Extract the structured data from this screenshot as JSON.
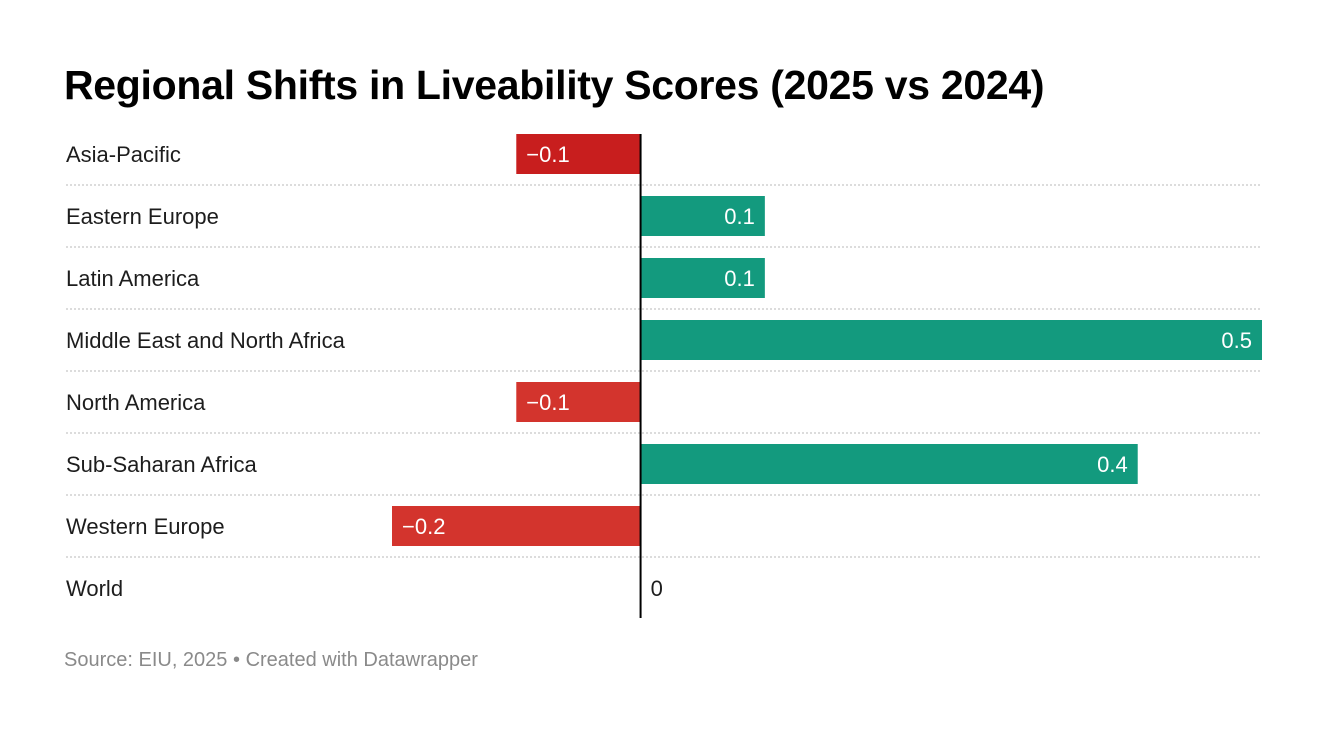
{
  "footer": {
    "source": "Source: EIU, 2025",
    "separator": "•",
    "credit": "Created with Datawrapper"
  },
  "colors": {
    "positive": "#139a7e",
    "negative": "#d3342d",
    "negative_highlight": "#c81e1e",
    "zero_line": "#000000",
    "grid": "#c8c8c8",
    "label_text": "#1d1d1d",
    "value_text_in_bar": "#ffffff"
  },
  "chart_data": {
    "type": "bar",
    "orientation": "horizontal",
    "title": "Regional Shifts in Liveability Scores (2025 vs 2024)",
    "xlabel": "",
    "ylabel": "",
    "xlim": [
      -0.2,
      0.5
    ],
    "grid": false,
    "categories": [
      "Asia-Pacific",
      "Eastern Europe",
      "Latin America",
      "Middle East and North Africa",
      "North America",
      "Sub-Saharan Africa",
      "Western Europe",
      "World"
    ],
    "values": [
      -0.1,
      0.1,
      0.1,
      0.5,
      -0.1,
      0.4,
      -0.2,
      0
    ],
    "value_labels": [
      "−0.1",
      "0.1",
      "0.1",
      "0.5",
      "−0.1",
      "0.4",
      "−0.2",
      "0"
    ]
  }
}
